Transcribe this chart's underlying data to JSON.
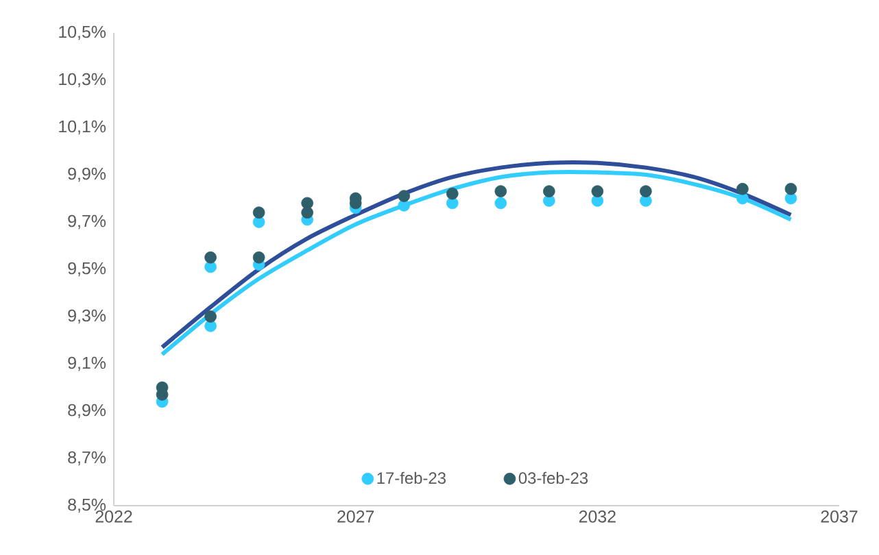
{
  "chart_data": {
    "type": "scatter",
    "xlim": [
      2022,
      2037
    ],
    "xticks": [
      2022,
      2027,
      2032,
      2037
    ],
    "ylim": [
      8.5,
      10.5
    ],
    "yticks": [
      {
        "value": 8.5,
        "label": "8,5%"
      },
      {
        "value": 8.7,
        "label": "8,7%"
      },
      {
        "value": 8.9,
        "label": "8,9%"
      },
      {
        "value": 9.1,
        "label": "9,1%"
      },
      {
        "value": 9.3,
        "label": "9,3%"
      },
      {
        "value": 9.5,
        "label": "9,5%"
      },
      {
        "value": 9.7,
        "label": "9,7%"
      },
      {
        "value": 9.9,
        "label": "9,9%"
      },
      {
        "value": 10.1,
        "label": "10,1%"
      },
      {
        "value": 10.3,
        "label": "10,3%"
      },
      {
        "value": 10.5,
        "label": "10,5%"
      }
    ],
    "grid": false,
    "legend": "bottom",
    "series": [
      {
        "name": "17-feb-23",
        "marker": "circle",
        "color": "#33ccff",
        "x": [
          2023,
          2024,
          2024,
          2025,
          2025,
          2026,
          2027,
          2028,
          2029,
          2030,
          2031,
          2032,
          2033,
          2035,
          2036
        ],
        "values": [
          8.94,
          9.51,
          9.26,
          9.7,
          9.52,
          9.71,
          9.76,
          9.77,
          9.78,
          9.78,
          9.79,
          9.79,
          9.79,
          9.8,
          9.8
        ]
      },
      {
        "name": "03-feb-23",
        "marker": "circle",
        "color": "#2f5f6b",
        "x": [
          2023,
          2023,
          2024,
          2024,
          2025,
          2025,
          2026,
          2026,
          2027,
          2027,
          2028,
          2029,
          2030,
          2031,
          2032,
          2033,
          2035,
          2036
        ],
        "values": [
          9.0,
          8.97,
          9.55,
          9.3,
          9.74,
          9.55,
          9.78,
          9.74,
          9.8,
          9.78,
          9.81,
          9.82,
          9.83,
          9.83,
          9.83,
          9.83,
          9.84,
          9.84
        ]
      },
      {
        "type": "line",
        "marker": "none",
        "color": "#33ccff",
        "x": [
          2023,
          2024,
          2025,
          2026,
          2027,
          2028,
          2029,
          2030,
          2031,
          2032,
          2033,
          2034,
          2035,
          2036
        ],
        "values": [
          9.14,
          9.31,
          9.46,
          9.58,
          9.69,
          9.77,
          9.84,
          9.89,
          9.91,
          9.91,
          9.9,
          9.86,
          9.8,
          9.71
        ]
      },
      {
        "type": "line",
        "marker": "none",
        "color": "#2e4e9a",
        "x": [
          2023,
          2024,
          2025,
          2026,
          2027,
          2028,
          2029,
          2030,
          2031,
          2032,
          2033,
          2034,
          2035,
          2036
        ],
        "values": [
          9.17,
          9.34,
          9.5,
          9.63,
          9.73,
          9.82,
          9.89,
          9.93,
          9.95,
          9.95,
          9.93,
          9.89,
          9.82,
          9.73
        ]
      }
    ]
  }
}
